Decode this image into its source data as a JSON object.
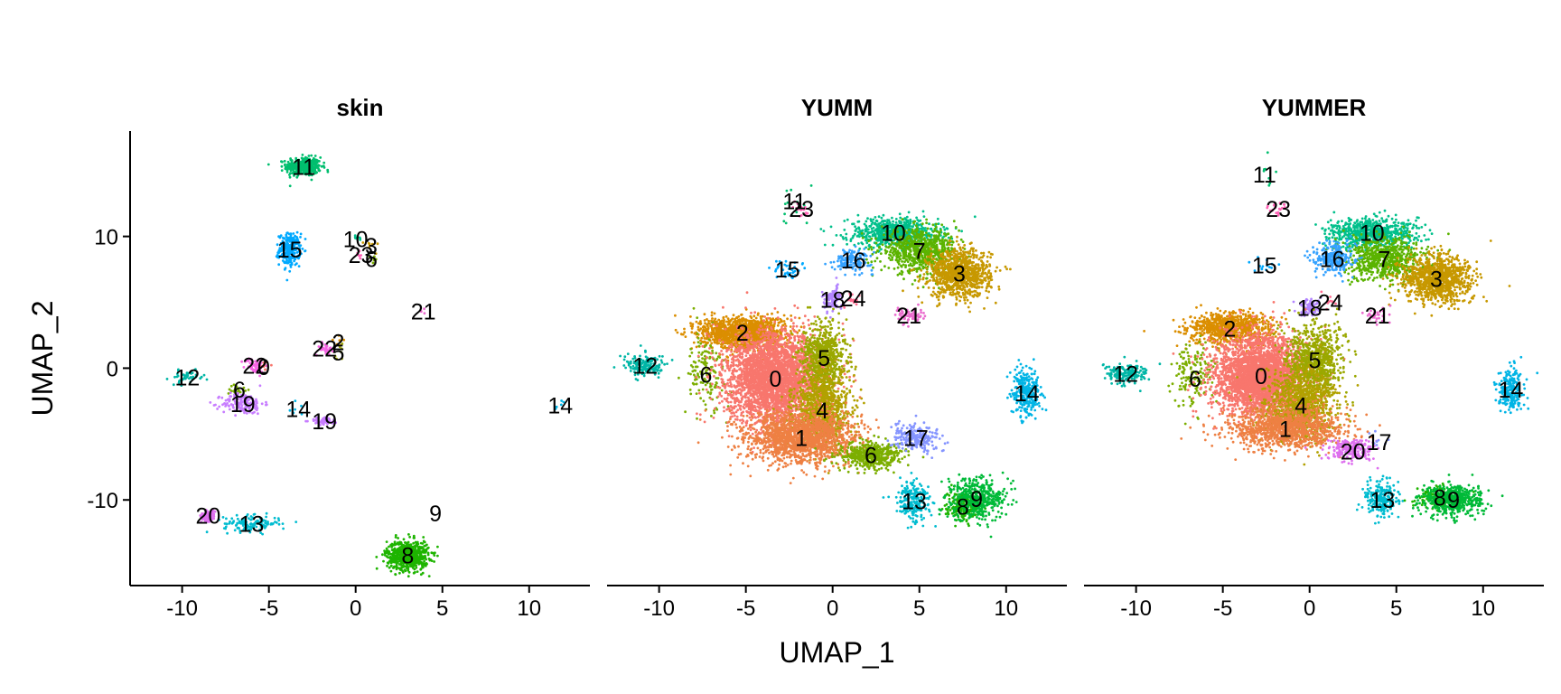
{
  "chart_data": {
    "type": "scatter",
    "xlabel": "UMAP_1",
    "ylabel": "UMAP_2",
    "xlim": [
      -13,
      13.5
    ],
    "ylim": [
      -16.5,
      18
    ],
    "x_ticks": [
      -10,
      -5,
      0,
      5,
      10
    ],
    "x_tick_labels": [
      "-10",
      "-5",
      "0",
      "5",
      "10"
    ],
    "y_ticks": [
      -10,
      0,
      10
    ],
    "y_tick_labels": [
      "-10",
      "0",
      "10"
    ],
    "grid": false,
    "legend": "none",
    "cluster_colors": {
      "0": "#F8766D",
      "1": "#EE8043",
      "2": "#DB8E00",
      "3": "#C79800",
      "4": "#B2A100",
      "5": "#9AA800",
      "6": "#7CAE00",
      "7": "#5BB300",
      "8": "#1EB400",
      "9": "#00BA38",
      "10": "#00C08B",
      "11": "#00BE6E",
      "12": "#00B6A6",
      "13": "#00BCD0",
      "14": "#00B4E5",
      "15": "#00A9FF",
      "16": "#35A2FF",
      "17": "#8494FF",
      "18": "#B385FF",
      "19": "#C77CFF",
      "20": "#DE6FEF",
      "21": "#EA6BCE",
      "22": "#F564E3",
      "23": "#FF63B6",
      "24": "#FF6C91"
    },
    "panels": [
      {
        "title": "skin",
        "clusters": [
          {
            "id": "11",
            "label": "11",
            "x": -3.0,
            "y": 15.3,
            "n": 420,
            "sx": 0.5,
            "sy": 0.35
          },
          {
            "id": "15",
            "label": "15",
            "x": -3.8,
            "y": 9.0,
            "n": 260,
            "sx": 0.3,
            "sy": 0.6
          },
          {
            "id": "10",
            "label": "10",
            "x": 0.0,
            "y": 9.8,
            "n": 8,
            "sx": 0.2,
            "sy": 0.2
          },
          {
            "id": "3",
            "label": "3",
            "x": 0.9,
            "y": 9.3,
            "n": 8,
            "sx": 0.2,
            "sy": 0.2
          },
          {
            "id": "23",
            "label": "23",
            "x": 0.3,
            "y": 8.6,
            "n": 6,
            "sx": 0.2,
            "sy": 0.2
          },
          {
            "id": "6",
            "label": "6",
            "x": 0.9,
            "y": 8.3,
            "n": 6,
            "sx": 0.2,
            "sy": 0.2
          },
          {
            "id": "21",
            "label": "21",
            "x": 3.9,
            "y": 4.3,
            "n": 4,
            "sx": 0.2,
            "sy": 0.2
          },
          {
            "id": "2",
            "label": "2",
            "x": -1.0,
            "y": 2.0,
            "n": 6,
            "sx": 0.3,
            "sy": 0.3
          },
          {
            "id": "5",
            "label": "5",
            "x": -1.0,
            "y": 1.2,
            "n": 8,
            "sx": 0.3,
            "sy": 0.3
          },
          {
            "id": "22",
            "label": "22",
            "x": -1.8,
            "y": 1.5,
            "n": 35,
            "sx": 0.25,
            "sy": 0.25
          },
          {
            "id": "12",
            "label": "12",
            "x": -9.7,
            "y": -0.7,
            "n": 40,
            "sx": 0.5,
            "sy": 0.25
          },
          {
            "id": "22",
            "label": "22",
            "x": -5.8,
            "y": 0.2,
            "n": 60,
            "sx": 0.3,
            "sy": 0.3
          },
          {
            "id": "0",
            "label": "0",
            "x": -5.3,
            "y": 0.1,
            "n": 10,
            "sx": 0.2,
            "sy": 0.2
          },
          {
            "id": "6",
            "label": "6",
            "x": -6.7,
            "y": -1.6,
            "n": 20,
            "sx": 0.3,
            "sy": 0.3
          },
          {
            "id": "19",
            "label": "19",
            "x": -6.5,
            "y": -2.7,
            "n": 160,
            "sx": 0.6,
            "sy": 0.4
          },
          {
            "id": "14",
            "label": "14",
            "x": -3.3,
            "y": -3.1,
            "n": 6,
            "sx": 0.3,
            "sy": 0.3
          },
          {
            "id": "19",
            "label": "19",
            "x": -1.8,
            "y": -4.0,
            "n": 50,
            "sx": 0.4,
            "sy": 0.15
          },
          {
            "id": "14",
            "label": "14",
            "x": 11.8,
            "y": -2.8,
            "n": 6,
            "sx": 0.2,
            "sy": 0.2
          },
          {
            "id": "20",
            "label": "20",
            "x": -8.5,
            "y": -11.2,
            "n": 120,
            "sx": 0.2,
            "sy": 0.2
          },
          {
            "id": "13",
            "label": "13",
            "x": -6.0,
            "y": -11.8,
            "n": 140,
            "sx": 0.8,
            "sy": 0.3
          },
          {
            "id": "9",
            "label": "9",
            "x": 4.6,
            "y": -11.0,
            "n": 0,
            "sx": 0.2,
            "sy": 0.2
          },
          {
            "id": "8",
            "label": "8",
            "x": 3.0,
            "y": -14.2,
            "n": 650,
            "sx": 0.6,
            "sy": 0.55
          }
        ]
      },
      {
        "title": "YUMM",
        "clusters": [
          {
            "id": "11",
            "label": "11",
            "x": -2.2,
            "y": 12.7,
            "n": 14,
            "sx": 0.4,
            "sy": 1.0
          },
          {
            "id": "23",
            "label": "23",
            "x": -1.8,
            "y": 12.1,
            "n": 20,
            "sx": 0.3,
            "sy": 0.3
          },
          {
            "id": "10",
            "label": "10",
            "x": 3.5,
            "y": 10.3,
            "n": 650,
            "sx": 1.3,
            "sy": 0.55
          },
          {
            "id": "7",
            "label": "7",
            "x": 5.0,
            "y": 8.9,
            "n": 700,
            "sx": 1.1,
            "sy": 0.8
          },
          {
            "id": "3",
            "label": "3",
            "x": 7.3,
            "y": 7.2,
            "n": 950,
            "sx": 0.9,
            "sy": 0.9
          },
          {
            "id": "16",
            "label": "16",
            "x": 1.2,
            "y": 8.2,
            "n": 140,
            "sx": 0.55,
            "sy": 0.4
          },
          {
            "id": "15",
            "label": "15",
            "x": -2.6,
            "y": 7.5,
            "n": 40,
            "sx": 0.4,
            "sy": 0.4
          },
          {
            "id": "18",
            "label": "18",
            "x": 0.0,
            "y": 5.2,
            "n": 90,
            "sx": 0.3,
            "sy": 0.5
          },
          {
            "id": "24",
            "label": "24",
            "x": 1.2,
            "y": 5.3,
            "n": 20,
            "sx": 0.3,
            "sy": 0.3
          },
          {
            "id": "21",
            "label": "21",
            "x": 4.4,
            "y": 4.0,
            "n": 60,
            "sx": 0.4,
            "sy": 0.3
          },
          {
            "id": "2",
            "label": "2",
            "x": -5.2,
            "y": 2.7,
            "n": 1300,
            "sx": 1.2,
            "sy": 0.6
          },
          {
            "id": "12",
            "label": "12",
            "x": -10.8,
            "y": 0.2,
            "n": 160,
            "sx": 0.6,
            "sy": 0.4
          },
          {
            "id": "6",
            "label": "6",
            "x": -7.3,
            "y": -0.5,
            "n": 150,
            "sx": 0.6,
            "sy": 1.5
          },
          {
            "id": "0",
            "label": "0",
            "x": -3.3,
            "y": -0.8,
            "n": 3200,
            "sx": 1.4,
            "sy": 1.7
          },
          {
            "id": "5",
            "label": "5",
            "x": -0.5,
            "y": 0.8,
            "n": 700,
            "sx": 0.6,
            "sy": 1.3
          },
          {
            "id": "4",
            "label": "4",
            "x": -0.6,
            "y": -3.2,
            "n": 900,
            "sx": 0.8,
            "sy": 1.4
          },
          {
            "id": "1",
            "label": "1",
            "x": -1.8,
            "y": -5.3,
            "n": 1600,
            "sx": 1.6,
            "sy": 1.0
          },
          {
            "id": "6",
            "label": "6",
            "x": 2.2,
            "y": -6.6,
            "n": 500,
            "sx": 0.9,
            "sy": 0.5
          },
          {
            "id": "17",
            "label": "17",
            "x": 4.8,
            "y": -5.3,
            "n": 220,
            "sx": 0.7,
            "sy": 0.5
          },
          {
            "id": "14",
            "label": "14",
            "x": 11.2,
            "y": -1.9,
            "n": 300,
            "sx": 0.4,
            "sy": 0.9
          },
          {
            "id": "13",
            "label": "13",
            "x": 4.7,
            "y": -10.1,
            "n": 220,
            "sx": 0.5,
            "sy": 0.7
          },
          {
            "id": "8",
            "label": "8",
            "x": 7.5,
            "y": -10.5,
            "n": 220,
            "sx": 0.5,
            "sy": 0.5
          },
          {
            "id": "9",
            "label": "9",
            "x": 8.3,
            "y": -9.9,
            "n": 450,
            "sx": 0.8,
            "sy": 0.8
          }
        ]
      },
      {
        "title": "YUMMER",
        "clusters": [
          {
            "id": "11",
            "label": "11",
            "x": -2.6,
            "y": 14.7,
            "n": 8,
            "sx": 0.4,
            "sy": 0.6
          },
          {
            "id": "23",
            "label": "23",
            "x": -1.8,
            "y": 12.1,
            "n": 20,
            "sx": 0.3,
            "sy": 0.3
          },
          {
            "id": "10",
            "label": "10",
            "x": 3.6,
            "y": 10.3,
            "n": 650,
            "sx": 1.3,
            "sy": 0.55
          },
          {
            "id": "7",
            "label": "7",
            "x": 4.3,
            "y": 8.3,
            "n": 700,
            "sx": 1.1,
            "sy": 0.8
          },
          {
            "id": "3",
            "label": "3",
            "x": 7.3,
            "y": 6.8,
            "n": 1000,
            "sx": 1.0,
            "sy": 0.9
          },
          {
            "id": "16",
            "label": "16",
            "x": 1.3,
            "y": 8.3,
            "n": 260,
            "sx": 0.6,
            "sy": 0.6
          },
          {
            "id": "15",
            "label": "15",
            "x": -2.6,
            "y": 7.8,
            "n": 15,
            "sx": 0.3,
            "sy": 0.3
          },
          {
            "id": "18",
            "label": "18",
            "x": 0.0,
            "y": 4.6,
            "n": 80,
            "sx": 0.3,
            "sy": 0.4
          },
          {
            "id": "24",
            "label": "24",
            "x": 1.2,
            "y": 5.0,
            "n": 10,
            "sx": 0.3,
            "sy": 0.3
          },
          {
            "id": "21",
            "label": "21",
            "x": 3.9,
            "y": 4.0,
            "n": 30,
            "sx": 0.3,
            "sy": 0.3
          },
          {
            "id": "2",
            "label": "2",
            "x": -4.6,
            "y": 3.0,
            "n": 800,
            "sx": 1.2,
            "sy": 0.6
          },
          {
            "id": "12",
            "label": "12",
            "x": -10.6,
            "y": -0.4,
            "n": 160,
            "sx": 0.6,
            "sy": 0.4
          },
          {
            "id": "6",
            "label": "6",
            "x": -6.6,
            "y": -0.8,
            "n": 160,
            "sx": 0.6,
            "sy": 1.3
          },
          {
            "id": "0",
            "label": "0",
            "x": -2.8,
            "y": -0.6,
            "n": 3200,
            "sx": 1.3,
            "sy": 1.5
          },
          {
            "id": "5",
            "label": "5",
            "x": 0.3,
            "y": 0.6,
            "n": 800,
            "sx": 0.8,
            "sy": 1.3
          },
          {
            "id": "4",
            "label": "4",
            "x": -0.5,
            "y": -2.8,
            "n": 1000,
            "sx": 1.0,
            "sy": 1.3
          },
          {
            "id": "1",
            "label": "1",
            "x": -1.4,
            "y": -4.6,
            "n": 1100,
            "sx": 1.6,
            "sy": 0.8
          },
          {
            "id": "20",
            "label": "20",
            "x": 2.5,
            "y": -6.3,
            "n": 200,
            "sx": 0.7,
            "sy": 0.4
          },
          {
            "id": "17",
            "label": "17",
            "x": 4.0,
            "y": -5.6,
            "n": 8,
            "sx": 0.3,
            "sy": 0.3
          },
          {
            "id": "14",
            "label": "14",
            "x": 11.6,
            "y": -1.6,
            "n": 220,
            "sx": 0.35,
            "sy": 0.8
          },
          {
            "id": "13",
            "label": "13",
            "x": 4.2,
            "y": -10.0,
            "n": 220,
            "sx": 0.5,
            "sy": 0.7
          },
          {
            "id": "8",
            "label": "8",
            "x": 7.5,
            "y": -9.8,
            "n": 220,
            "sx": 0.6,
            "sy": 0.4
          },
          {
            "id": "9",
            "label": "9",
            "x": 8.3,
            "y": -10.0,
            "n": 500,
            "sx": 0.9,
            "sy": 0.6
          }
        ]
      }
    ]
  }
}
